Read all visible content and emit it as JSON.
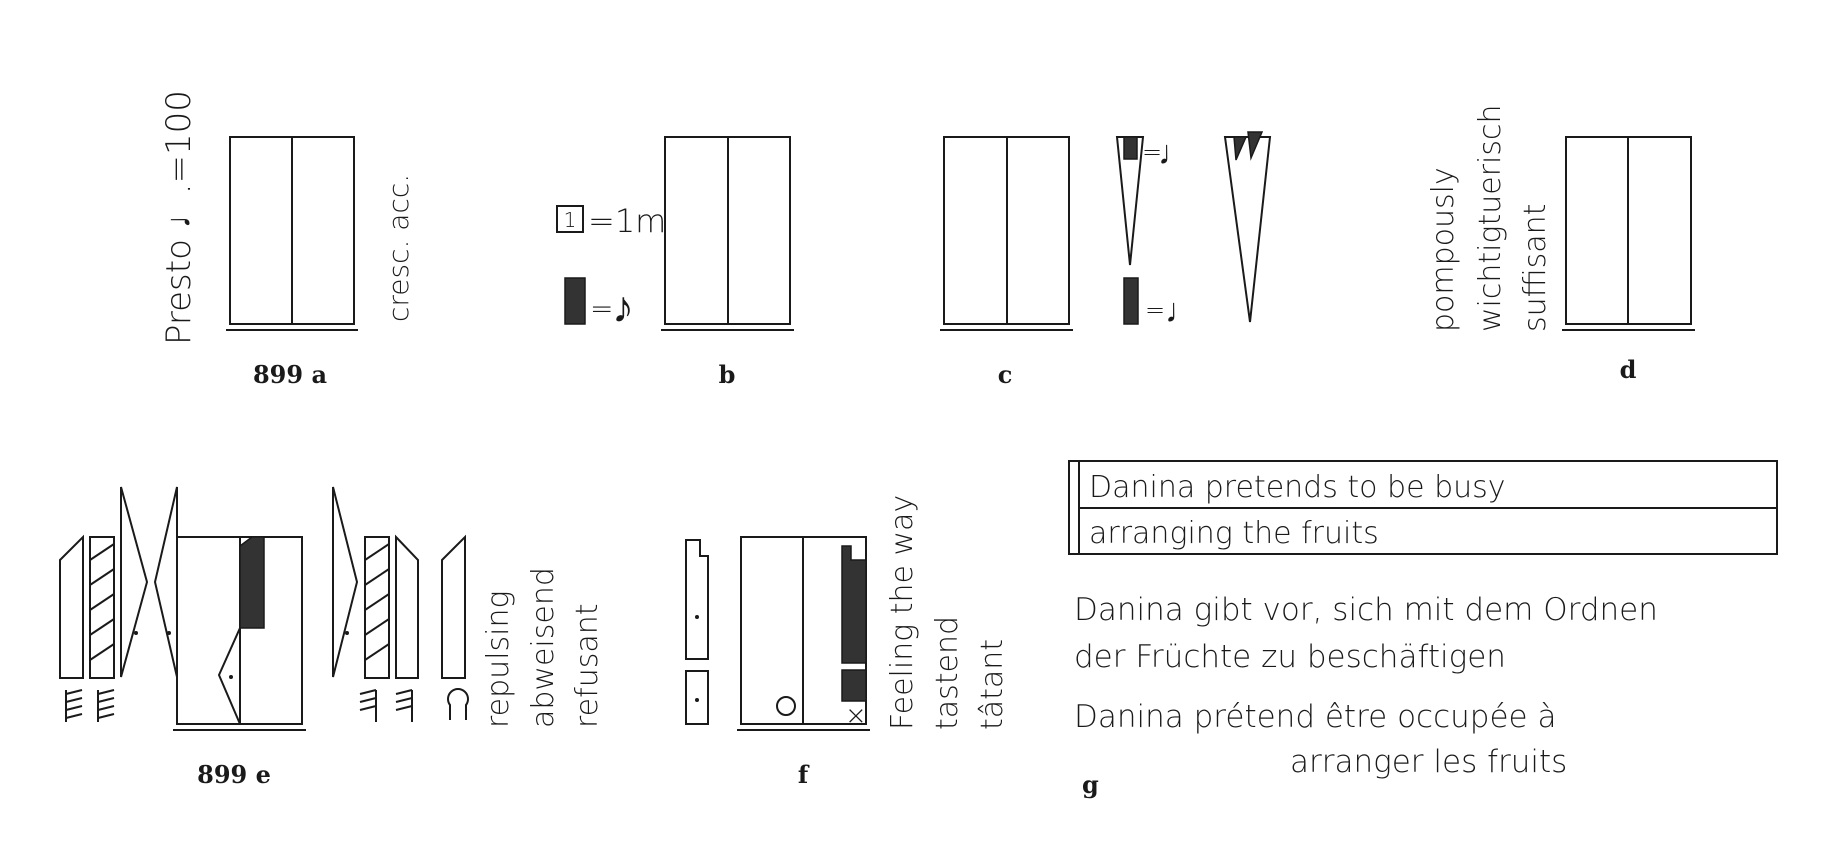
{
  "figures": {
    "a": {
      "caption": "899 a",
      "tempo": "Presto",
      "tempo_note": "♩.",
      "tempo_value": "=100",
      "direction": "cresc. acc."
    },
    "b": {
      "caption": "b",
      "measure_box": "1",
      "measure_eq": "=1m",
      "note_eq": "=",
      "note_glyph": "♪"
    },
    "c": {
      "caption": "c",
      "eq_top": "=",
      "eq_bottom": "=",
      "note_glyph": "♩"
    },
    "d": {
      "caption": "d",
      "words": [
        "pompously",
        "wichtigtuerisch",
        "suffisant"
      ]
    },
    "e": {
      "caption": "899 e",
      "words": [
        "repulsing",
        "abweisend",
        "refusant"
      ]
    },
    "f": {
      "caption": "f",
      "words": [
        "Feeling the way",
        "tastend",
        "tâtant"
      ]
    },
    "g": {
      "caption": "g",
      "box_line_1": "Danina  pretends  to be busy",
      "box_line_2": "arranging  the  fruits",
      "german_1": "Danina gibt vor, sich mit dem Ordnen",
      "german_2": "der Früchte  zu  beschäftigen",
      "french_1": "Danina  prétend  être  occupée  à",
      "french_2": "arranger  les  fruits"
    }
  }
}
